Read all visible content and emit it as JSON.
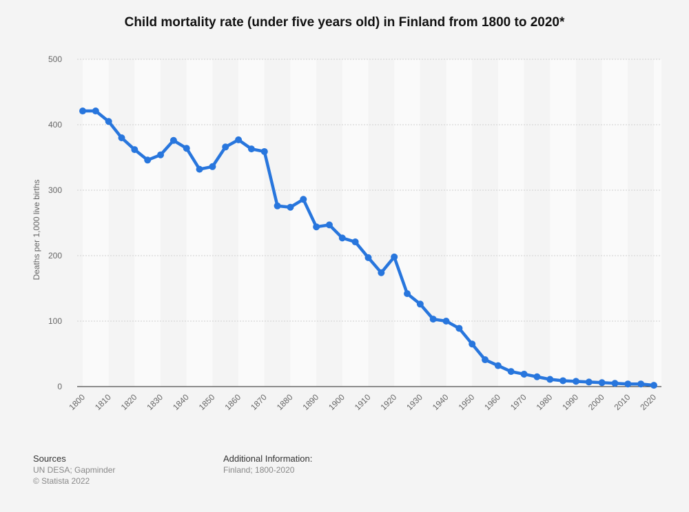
{
  "chart_data": {
    "type": "line",
    "title": "Child mortality rate (under five years old) in Finland from 1800 to 2020*",
    "xlabel": "",
    "ylabel": "Deaths per 1,000 live births",
    "ylim": [
      0,
      500
    ],
    "yticks": [
      0,
      100,
      200,
      300,
      400,
      500
    ],
    "xticks": [
      1800,
      1810,
      1820,
      1830,
      1840,
      1850,
      1860,
      1870,
      1880,
      1890,
      1900,
      1910,
      1920,
      1930,
      1940,
      1950,
      1960,
      1970,
      1980,
      1990,
      2000,
      2010,
      2020
    ],
    "grid": true,
    "color": "#2876dd",
    "x": [
      1800,
      1805,
      1810,
      1815,
      1820,
      1825,
      1830,
      1835,
      1840,
      1845,
      1850,
      1855,
      1860,
      1865,
      1870,
      1875,
      1880,
      1885,
      1890,
      1895,
      1900,
      1905,
      1910,
      1915,
      1920,
      1925,
      1930,
      1935,
      1940,
      1945,
      1950,
      1955,
      1960,
      1965,
      1970,
      1975,
      1980,
      1985,
      1990,
      1995,
      2000,
      2005,
      2010,
      2015,
      2020
    ],
    "values": [
      421,
      421,
      405,
      380,
      362,
      346,
      354,
      376,
      364,
      332,
      336,
      366,
      377,
      363,
      359,
      276,
      274,
      286,
      244,
      247,
      227,
      221,
      197,
      174,
      198,
      142,
      126,
      103,
      100,
      89,
      65,
      41,
      32,
      23,
      19,
      15,
      11,
      9,
      8,
      7,
      6,
      5,
      4,
      4,
      2
    ]
  },
  "footer": {
    "sources_label": "Sources",
    "sources_lines": [
      "UN DESA; Gapminder",
      "© Statista 2022"
    ],
    "additional_label": "Additional Information:",
    "additional_text": "Finland; 1800-2020"
  }
}
